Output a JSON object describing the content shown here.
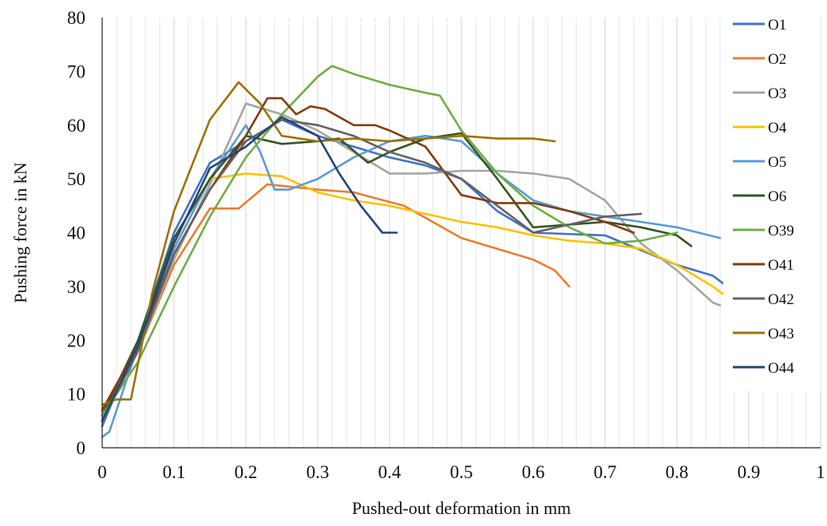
{
  "chart_data": {
    "type": "line",
    "title": "",
    "xlabel": "Pushed-out deformation in mm",
    "ylabel": "Pushing  force in kN",
    "xlim": [
      0,
      1
    ],
    "ylim": [
      0,
      80
    ],
    "x_ticks": [
      "0",
      "0.1",
      "0.2",
      "0.3",
      "0.4",
      "0.5",
      "0.6",
      "0.7",
      "0.8",
      "0.9",
      "1"
    ],
    "y_ticks": [
      "0",
      "10",
      "20",
      "30",
      "40",
      "50",
      "60",
      "70",
      "80"
    ],
    "grid": "vertical minor and major gridlines",
    "legend_position": "right",
    "series": [
      {
        "name": "O1",
        "color": "#4472c4",
        "x": [
          0,
          0.05,
          0.1,
          0.15,
          0.2,
          0.25,
          0.3,
          0.35,
          0.4,
          0.45,
          0.5,
          0.55,
          0.6,
          0.7,
          0.8,
          0.85,
          0.87
        ],
        "y": [
          4,
          20,
          40,
          53,
          57,
          61,
          58,
          56,
          54,
          52.5,
          50,
          44,
          40,
          39.5,
          34,
          32,
          30
        ]
      },
      {
        "name": "O2",
        "color": "#ed7d31",
        "x": [
          0,
          0.05,
          0.1,
          0.15,
          0.19,
          0.23,
          0.3,
          0.35,
          0.42,
          0.5,
          0.55,
          0.6,
          0.63,
          0.65
        ],
        "y": [
          6,
          18,
          34,
          44.5,
          44.5,
          49,
          48,
          47.5,
          45,
          39,
          37,
          35,
          33,
          30
        ]
      },
      {
        "name": "O3",
        "color": "#a5a5a5",
        "x": [
          0,
          0.05,
          0.1,
          0.15,
          0.2,
          0.25,
          0.3,
          0.35,
          0.4,
          0.45,
          0.5,
          0.55,
          0.6,
          0.65,
          0.7,
          0.75,
          0.8,
          0.85,
          0.86
        ],
        "y": [
          5,
          18,
          35,
          49,
          64,
          62,
          59,
          55,
          51,
          51,
          51.5,
          51.5,
          51,
          50,
          46,
          38,
          33,
          27,
          26.5
        ]
      },
      {
        "name": "O4",
        "color": "#ffc000",
        "x": [
          0,
          0.05,
          0.1,
          0.15,
          0.2,
          0.25,
          0.3,
          0.35,
          0.4,
          0.45,
          0.5,
          0.55,
          0.6,
          0.65,
          0.7,
          0.75,
          0.8,
          0.85,
          0.87
        ],
        "y": [
          7,
          19,
          37,
          50,
          51,
          50.5,
          47.5,
          46,
          45,
          43.5,
          42,
          41,
          39.5,
          38.5,
          38,
          37,
          34,
          30,
          28
        ]
      },
      {
        "name": "O5",
        "color": "#5b9bd5",
        "x": [
          0,
          0.01,
          0.05,
          0.1,
          0.15,
          0.2,
          0.22,
          0.24,
          0.26,
          0.3,
          0.35,
          0.4,
          0.45,
          0.5,
          0.55,
          0.6,
          0.65,
          0.7,
          0.75,
          0.8,
          0.86
        ],
        "y": [
          2,
          3,
          19,
          37,
          50,
          60,
          55,
          48,
          48,
          50,
          54,
          57,
          58,
          57,
          51,
          46,
          44,
          43,
          42,
          41,
          39
        ]
      },
      {
        "name": "O6",
        "color": "#375623",
        "x": [
          0,
          0.05,
          0.1,
          0.15,
          0.2,
          0.25,
          0.3,
          0.33,
          0.37,
          0.4,
          0.45,
          0.5,
          0.55,
          0.6,
          0.65,
          0.7,
          0.75,
          0.8,
          0.82
        ],
        "y": [
          6,
          20,
          39,
          50,
          58,
          56.5,
          57,
          57.5,
          53,
          55,
          57.5,
          58.5,
          50,
          41,
          41.5,
          42,
          41,
          39.5,
          37.5
        ]
      },
      {
        "name": "O39",
        "color": "#70ad47",
        "x": [
          0,
          0.05,
          0.1,
          0.15,
          0.2,
          0.25,
          0.3,
          0.32,
          0.35,
          0.4,
          0.45,
          0.47,
          0.5,
          0.55,
          0.6,
          0.65,
          0.7,
          0.75,
          0.8
        ],
        "y": [
          6,
          16,
          30,
          43,
          54,
          62,
          69,
          71,
          69.5,
          67.5,
          66,
          65.5,
          59,
          51,
          45,
          41,
          38,
          38.5,
          40
        ]
      },
      {
        "name": "O41",
        "color": "#843c0c",
        "x": [
          0,
          0.05,
          0.1,
          0.15,
          0.2,
          0.23,
          0.25,
          0.27,
          0.29,
          0.31,
          0.35,
          0.38,
          0.4,
          0.45,
          0.5,
          0.55,
          0.6,
          0.65,
          0.7,
          0.74
        ],
        "y": [
          7,
          19,
          36,
          48,
          58,
          65,
          65,
          62,
          63.5,
          63,
          60,
          60,
          59,
          56,
          47,
          45.5,
          45.5,
          44,
          42,
          40
        ]
      },
      {
        "name": "O42",
        "color": "#636363",
        "x": [
          0,
          0.05,
          0.1,
          0.15,
          0.2,
          0.25,
          0.3,
          0.35,
          0.4,
          0.45,
          0.5,
          0.55,
          0.6,
          0.65,
          0.7,
          0.75
        ],
        "y": [
          5,
          18,
          36,
          48,
          57,
          61,
          60,
          58,
          55,
          53,
          50,
          45,
          40,
          41.5,
          43,
          43.5
        ]
      },
      {
        "name": "O43",
        "color": "#997300",
        "x": [
          0,
          0.02,
          0.04,
          0.07,
          0.1,
          0.15,
          0.19,
          0.22,
          0.25,
          0.3,
          0.35,
          0.4,
          0.45,
          0.5,
          0.55,
          0.6,
          0.63
        ],
        "y": [
          8,
          9,
          9,
          29,
          44,
          61,
          68,
          64,
          58,
          57,
          57.5,
          57,
          57.5,
          58,
          57.5,
          57.5,
          57
        ]
      },
      {
        "name": "O44",
        "color": "#264478",
        "x": [
          0,
          0.05,
          0.1,
          0.15,
          0.2,
          0.25,
          0.3,
          0.33,
          0.36,
          0.39,
          0.41
        ],
        "y": [
          5,
          19,
          38,
          52,
          56,
          61.5,
          58,
          51,
          45,
          40,
          40
        ]
      }
    ]
  }
}
